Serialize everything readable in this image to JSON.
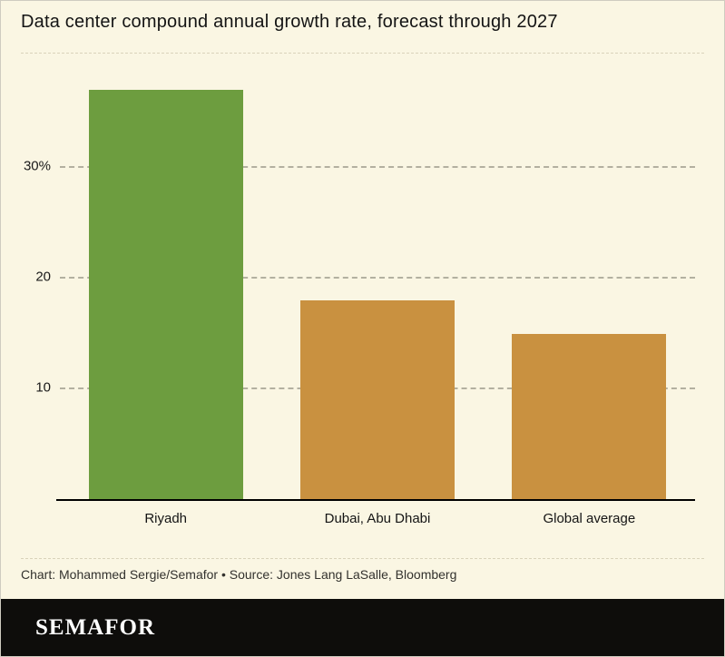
{
  "chart_data": {
    "type": "bar",
    "title": "Data center compound annual growth rate, forecast through 2027",
    "categories": [
      "Riyadh",
      "Dubai, Abu Dhabi",
      "Global average"
    ],
    "values": [
      37,
      18,
      15
    ],
    "unit": "%",
    "bar_colors": [
      "#6d9d3f",
      "#c99140",
      "#c99140"
    ],
    "ylim": [
      0,
      38.5
    ],
    "yticks": [
      {
        "value": 10,
        "label": "10"
      },
      {
        "value": 20,
        "label": "20"
      },
      {
        "value": 30,
        "label": "30%"
      }
    ],
    "grid": "dashed-horizontal",
    "legend": "none"
  },
  "footer": {
    "credit": "Chart: Mohammed Sergie/Semafor • Source: Jones Lang LaSalle, Bloomberg",
    "brand": "SEMAFOR"
  },
  "colors": {
    "background": "#faf6e3",
    "highlight_bar": "#6d9d3f",
    "default_bar": "#c99140",
    "brand_band": "#0e0d0b",
    "axis": "#000000"
  }
}
